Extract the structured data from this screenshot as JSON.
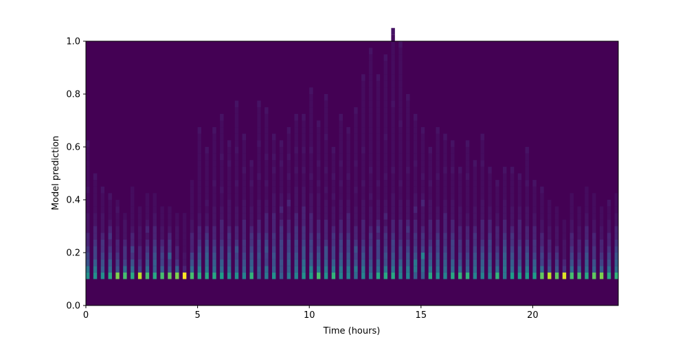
{
  "chart_data": {
    "type": "heatmap",
    "title": "",
    "xlabel": "Time (hours)",
    "ylabel": "Model prediction",
    "xlim": [
      0,
      23.83
    ],
    "ylim": [
      0,
      1.0
    ],
    "xticks": [
      0,
      5,
      10,
      15,
      20
    ],
    "yticks": [
      0.0,
      0.2,
      0.4,
      0.6,
      0.8,
      1.0
    ],
    "xtick_labels": [
      "0",
      "5",
      "10",
      "15",
      "20"
    ],
    "ytick_labels": [
      "0.0",
      "0.2",
      "0.4",
      "0.6",
      "0.8",
      "1.0"
    ],
    "colormap": "viridis",
    "background_color": "#440154",
    "x_step_hours": 0.3333,
    "x_bin_width_hours": 0.1667,
    "y_start": 0.1,
    "y_bin_width": 0.025,
    "vmax": 10,
    "z_columns": [
      [
        5,
        4,
        2.5,
        2,
        1.5,
        1,
        1,
        0.5,
        0.5,
        0.5,
        0.3,
        0.3,
        0.3,
        0.5,
        0.3,
        0.3,
        0.3,
        0.3,
        0.3,
        0.3,
        0.5
      ],
      [
        5,
        4,
        3,
        2,
        2,
        1.5,
        1,
        1,
        0.5,
        0.5,
        0.3,
        0.3,
        0.3,
        0.3,
        0.3,
        0.5
      ],
      [
        5,
        3,
        2.5,
        2,
        1.5,
        1.5,
        1,
        0.5,
        0.5,
        0.5,
        0.3,
        0.3,
        0.3,
        0.5
      ],
      [
        6,
        3.5,
        3,
        2,
        1.5,
        1,
        1.5,
        1,
        0.5,
        0.3,
        0.3,
        0.3,
        0.5
      ],
      [
        8,
        2.5,
        2,
        1.5,
        1,
        1,
        0.5,
        0.5,
        0.3,
        0.3,
        0.5,
        0.3
      ],
      [
        7,
        3.5,
        2,
        1.5,
        1.5,
        1,
        0.5,
        0.5,
        0.5,
        0.3
      ],
      [
        6,
        3.5,
        2.5,
        1.5,
        2,
        1,
        1,
        0.5,
        0.3,
        0.3,
        0.3,
        0.3,
        0.3,
        0.3
      ],
      [
        9,
        2,
        1.5,
        1,
        1,
        0.5,
        0.5,
        0.5,
        0.3,
        0.3,
        0.3
      ],
      [
        7,
        3.5,
        2.5,
        2,
        1.5,
        1,
        0.5,
        1,
        0.5,
        0.3,
        0.3,
        0.3,
        0.3
      ],
      [
        6,
        3,
        3,
        2.5,
        2,
        1.5,
        1,
        1,
        0.5,
        0.5,
        0.3,
        0.3,
        0.3
      ],
      [
        7,
        3,
        2,
        2,
        1.5,
        1,
        0.5,
        0.5,
        0.3,
        0.3,
        0.3
      ],
      [
        7.5,
        2.5,
        2,
        3,
        1.5,
        1.5,
        1,
        0.5,
        0.3,
        0.3,
        0.3
      ],
      [
        8,
        3,
        1.5,
        1,
        1,
        0.5,
        0.5,
        0.5,
        0.3,
        0.3
      ],
      [
        10,
        1,
        0.5,
        0.5,
        0.3,
        0.3,
        0.3,
        0.3,
        0.3,
        0.3
      ],
      [
        7,
        3.5,
        2.5,
        2,
        1,
        1,
        1,
        0.5,
        0.5,
        0.3,
        0.3,
        0.3,
        0.3,
        0.3,
        0.3
      ],
      [
        6,
        4,
        3,
        2.5,
        2,
        1.5,
        1,
        1,
        0.5,
        0.5,
        0.3,
        0.3,
        0.3,
        0.3,
        0.3,
        0.3,
        0.3,
        0.3,
        0.3,
        0.3,
        0.3,
        0.3,
        0.5
      ],
      [
        6,
        4,
        3.5,
        3,
        2.5,
        2,
        1.5,
        1,
        0.5,
        0.5,
        0.3,
        0.5,
        0.3,
        0.3,
        0.3,
        0.3,
        0.3,
        0.3,
        0.3,
        0.5
      ],
      [
        6,
        3.5,
        3,
        2.5,
        2,
        1.5,
        1,
        1,
        0.5,
        0.5,
        0.5,
        0.3,
        0.3,
        0.3,
        0.5,
        0.3,
        0.3,
        0.3,
        0.3,
        0.3,
        0.3,
        0.3,
        0.5
      ],
      [
        5.5,
        3.5,
        3,
        2,
        2,
        1.5,
        1,
        1,
        1,
        0.5,
        0.5,
        0.3,
        0.3,
        0.5,
        0.3,
        0.3,
        0.3,
        0.3,
        0.5,
        0.3,
        0.3,
        0.3,
        0.3,
        0.3,
        0.5
      ],
      [
        5,
        3.5,
        3,
        2.5,
        2,
        1.5,
        1.5,
        1,
        0.5,
        0.5,
        0.5,
        0.5,
        0.3,
        0.3,
        0.3,
        0.3,
        0.3,
        0.5,
        0.3,
        0.3,
        0.5
      ],
      [
        5,
        3,
        2.5,
        2,
        2.5,
        1.5,
        1,
        1,
        0.5,
        0.5,
        0.5,
        0.3,
        0.3,
        0.3,
        0.5,
        0.3,
        0.3,
        0.3,
        0.3,
        0.5,
        0.3,
        0.3,
        0.3,
        0.3,
        0.3,
        0.3,
        0.5
      ],
      [
        4.5,
        3,
        2.5,
        2,
        1.5,
        1.5,
        1,
        1,
        1,
        0.5,
        0.5,
        0.5,
        0.3,
        0.3,
        0.3,
        0.3,
        0.5,
        0.3,
        0.3,
        0.3,
        0.3,
        0.5
      ],
      [
        6.5,
        3.5,
        3,
        2.5,
        2,
        1.5,
        1.5,
        1,
        0.5,
        0.5,
        0.5,
        0.3,
        0.3,
        0.3,
        0.5,
        0.3,
        0.3,
        0.5
      ],
      [
        3,
        3,
        2.5,
        2.5,
        2,
        2,
        1.5,
        1,
        1,
        0.5,
        0.5,
        0.5,
        0.3,
        0.3,
        0.3,
        0.5,
        0.3,
        0.3,
        0.3,
        0.3,
        0.5,
        0.3,
        0.3,
        0.3,
        0.3,
        0.3,
        0.5
      ],
      [
        4,
        3.5,
        2,
        2,
        2.5,
        2,
        1.5,
        1,
        1,
        1,
        0.5,
        0.5,
        0.3,
        0.3,
        0.5,
        0.3,
        0.3,
        0.3,
        0.5,
        0.3,
        0.3,
        0.3,
        0.3,
        0.3,
        0.3,
        0.5
      ],
      [
        5,
        3,
        2.5,
        2.5,
        2,
        1.5,
        1.5,
        1,
        1,
        1,
        0.5,
        0.5,
        0.5,
        0.3,
        0.3,
        0.3,
        0.5,
        0.3,
        0.5,
        0.3,
        0.3,
        0.5
      ],
      [
        3,
        2.5,
        2.5,
        2,
        2,
        2,
        1.5,
        1.5,
        1,
        0.5,
        1,
        0.5,
        0.5,
        0.3,
        0.3,
        0.3,
        0.3,
        0.5,
        0.3,
        0.3,
        0.5
      ],
      [
        4,
        3,
        3,
        2.5,
        2,
        2,
        1.5,
        1,
        1,
        0.5,
        0.5,
        1,
        0.5,
        0.3,
        0.3,
        0.5,
        0.3,
        0.3,
        0.5,
        0.3,
        0.3,
        0.3,
        0.5
      ],
      [
        4.5,
        3.5,
        3,
        2.5,
        2,
        2,
        1.5,
        1.5,
        1,
        1,
        0.5,
        0.5,
        0.5,
        0.5,
        0.3,
        0.3,
        0.5,
        0.3,
        0.3,
        0.5,
        0.3,
        0.3,
        0.3,
        0.3,
        0.5
      ],
      [
        5,
        4,
        3.5,
        2.5,
        2.5,
        2,
        1.5,
        1.5,
        1,
        1,
        1,
        0.5,
        0.5,
        0.5,
        0.3,
        0.3,
        0.5,
        0.3,
        0.3,
        0.5,
        0.3,
        0.3,
        0.3,
        0.3,
        0.5
      ],
      [
        5.5,
        4.5,
        3,
        2.5,
        2,
        2,
        1.5,
        1,
        1,
        1,
        0.5,
        0.5,
        0.5,
        0.3,
        0.3,
        0.5,
        0.3,
        0.3,
        0.3,
        0.5,
        0.3,
        0.3,
        0.3,
        0.3,
        0.3,
        0.3,
        0.3,
        0.3,
        0.5
      ],
      [
        7,
        4,
        3,
        2.5,
        2,
        1.5,
        1.5,
        1,
        1,
        0.5,
        0.5,
        0.5,
        0.5,
        0.3,
        0.5,
        0.3,
        0.3,
        0.5,
        0.3,
        0.3,
        0.3,
        0.3,
        0.3,
        0.5
      ],
      [
        5,
        4,
        3,
        2.5,
        2.5,
        1.5,
        1,
        1,
        1,
        0.5,
        0.5,
        0.5,
        0.3,
        0.5,
        0.3,
        0.3,
        0.5,
        0.3,
        0.3,
        0.3,
        0.3,
        0.5,
        0.3,
        0.3,
        0.3,
        0.3,
        0.3,
        0.5
      ],
      [
        6.5,
        4,
        3,
        2,
        2,
        1.5,
        1.5,
        1,
        0.5,
        0.5,
        0.5,
        0.3,
        0.5,
        0.3,
        0.3,
        0.5,
        0.3,
        0.3,
        0.3,
        0.5
      ],
      [
        4.5,
        4,
        3,
        2.5,
        2,
        2,
        1.5,
        1,
        1,
        0.5,
        0.5,
        0.5,
        0.3,
        0.3,
        0.5,
        0.3,
        0.3,
        0.5,
        0.3,
        0.3,
        0.3,
        0.3,
        0.3,
        0.3,
        0.5
      ],
      [
        4.5,
        4,
        3,
        2.5,
        2,
        2,
        1.5,
        1,
        1,
        1,
        0.5,
        0.5,
        0.3,
        0.3,
        0.3,
        0.5,
        0.3,
        0.3,
        0.3,
        0.3,
        0.3,
        0.3,
        0.5
      ],
      [
        3.5,
        4,
        2.5,
        2,
        2.5,
        1.5,
        1,
        1,
        0.5,
        0.5,
        0.5,
        0.3,
        0.3,
        0.5,
        0.3,
        0.3,
        0.3,
        0.5,
        0.3,
        0.3,
        0.3,
        0.3,
        0.3,
        0.3,
        0.3,
        0.5
      ],
      [
        4.5,
        4,
        3,
        2.5,
        2,
        1.5,
        1,
        1,
        1,
        0.5,
        0.5,
        0.5,
        0.3,
        0.3,
        0.5,
        0.3,
        0.3,
        0.3,
        0.3,
        0.5,
        0.3,
        0.3,
        0.3,
        0.3,
        0.3,
        0.3,
        0.3,
        0.3,
        0.3,
        0.3,
        0.5
      ],
      [
        4,
        3,
        2.5,
        2,
        2,
        1.5,
        1.5,
        1,
        0.5,
        0.5,
        0.5,
        0.3,
        0.5,
        0.3,
        0.3,
        0.3,
        0.5,
        0.3,
        0.3,
        0.3,
        0.3,
        0.3,
        0.3,
        0.3,
        0.3,
        0.3,
        0.3,
        0.3,
        0.3,
        0.3,
        0.3,
        0.3,
        0.3,
        0.3,
        0.5
      ],
      [
        6,
        3.5,
        3,
        2,
        2,
        2,
        1,
        1.5,
        1,
        0.5,
        0.5,
        0.5,
        0.3,
        0.3,
        0.5,
        0.3,
        0.3,
        0.3,
        0.3,
        0.3,
        0.3,
        0.3,
        0.3,
        0.3,
        0.3,
        0.3,
        0.3,
        0.3,
        0.3,
        0.3,
        0.5
      ],
      [
        6,
        4,
        2.5,
        2.5,
        2,
        1.5,
        1.5,
        1,
        0.5,
        1,
        0.5,
        0.5,
        0.3,
        0.3,
        0.3,
        0.5,
        0.3,
        0.3,
        0.3,
        0.3,
        0.3,
        0.5,
        0.3,
        0.3,
        0.3,
        0.3,
        0.3,
        0.3,
        0.3,
        0.3,
        0.3,
        0.3,
        0.3,
        0.5
      ],
      [
        6,
        4,
        3,
        2.5,
        2,
        2,
        1.5,
        1,
        1,
        0.5,
        0.5,
        0.5,
        0.5,
        0.3,
        0.3,
        0.3,
        0.5,
        0.3,
        0.3,
        0.3,
        0.3,
        0.3,
        0.3,
        0.3,
        0.3,
        0.3,
        0.5,
        0.3,
        0.3,
        0.3,
        0.3,
        0.3,
        0.3,
        0.3,
        0.3,
        0.3,
        0.3,
        0.5
      ],
      [
        4.5,
        4,
        3,
        2,
        2,
        1.5,
        1,
        1,
        1,
        0.5,
        0.5,
        0.5,
        0.3,
        0.3,
        0.5,
        0.3,
        0.3,
        0.3,
        0.3,
        0.3,
        0.3,
        0.3,
        0.3,
        0.5,
        0.3,
        0.3,
        0.3,
        0.3,
        0.3,
        0.3,
        0.3,
        0.3,
        0.3,
        0.3,
        0.3,
        0.5
      ],
      [
        4.5,
        4,
        3,
        2.5,
        2,
        1.5,
        1,
        1.5,
        1,
        0.5,
        0.5,
        0.5,
        0.3,
        0.3,
        0.3,
        0.3,
        0.5,
        0.3,
        0.3,
        0.3,
        0.3,
        0.3,
        0.3,
        0.3,
        0.3,
        0.3,
        0.3,
        0.5
      ],
      [
        3,
        4,
        4,
        2.5,
        2,
        1.5,
        1.5,
        1,
        1,
        0.5,
        1,
        0.5,
        0.5,
        0.3,
        0.3,
        0.3,
        0.3,
        0.5,
        0.3,
        0.3,
        0.3,
        0.3,
        0.3,
        0.3,
        0.5
      ],
      [
        3,
        3.5,
        3,
        4.5,
        2,
        1.5,
        1.5,
        1,
        0.5,
        0.5,
        0.5,
        1,
        0.5,
        0.3,
        0.3,
        0.5,
        0.3,
        0.3,
        0.3,
        0.3,
        0.3,
        0.3,
        0.5
      ],
      [
        6,
        4,
        3,
        2.5,
        2,
        1.5,
        1,
        1,
        1,
        0.5,
        0.5,
        0.5,
        0.3,
        0.3,
        0.5,
        0.3,
        0.3,
        0.3,
        0.3,
        0.5
      ],
      [
        5,
        3.5,
        3,
        2.5,
        2,
        2,
        1.5,
        1,
        1,
        0.5,
        0.5,
        0.3,
        0.3,
        0.3,
        0.3,
        0.5,
        0.3,
        0.3,
        0.3,
        0.3,
        0.3,
        0.3,
        0.5
      ],
      [
        4.5,
        3.5,
        3,
        2.5,
        2,
        1.5,
        1.5,
        1,
        1,
        1,
        0.5,
        0.5,
        0.3,
        0.3,
        0.3,
        0.3,
        0.5,
        0.3,
        0.3,
        0.3,
        0.3,
        0.5
      ],
      [
        6,
        3.5,
        3,
        2,
        2,
        2,
        1.5,
        1,
        1,
        0.5,
        0.5,
        0.5,
        0.3,
        0.3,
        0.3,
        0.3,
        0.5,
        0.3,
        0.3,
        0.3,
        0.5
      ],
      [
        6.5,
        3.5,
        2.5,
        2,
        1.5,
        1.5,
        1,
        1,
        0.5,
        0.5,
        0.5,
        0.3,
        0.3,
        0.3,
        0.3,
        0.3,
        0.5
      ],
      [
        6.5,
        3,
        2.5,
        2,
        1.5,
        1.5,
        1,
        1,
        0.5,
        0.5,
        0.3,
        0.3,
        0.3,
        0.3,
        0.3,
        0.5,
        0.3,
        0.3,
        0.3,
        0.3,
        0.5
      ],
      [
        4.5,
        3.5,
        3,
        2.5,
        2,
        1.5,
        1.5,
        1,
        0.5,
        0.5,
        0.5,
        0.3,
        0.3,
        0.3,
        0.3,
        0.3,
        0.3,
        0.5
      ],
      [
        4.5,
        3.5,
        3,
        2.5,
        2,
        1.5,
        1,
        1,
        1,
        0.5,
        0.5,
        0.5,
        0.3,
        0.3,
        0.3,
        0.3,
        0.3,
        0.5,
        0.3,
        0.3,
        0.3,
        0.5
      ],
      [
        4.5,
        3.5,
        3,
        2.5,
        2,
        2,
        1.5,
        1,
        1,
        0.5,
        0.5,
        0.3,
        0.3,
        0.3,
        0.3,
        0.3,
        0.5
      ],
      [
        6.5,
        3.5,
        2.5,
        2,
        1.5,
        1,
        1,
        1,
        0.5,
        0.5,
        0.3,
        0.3,
        0.3,
        0.3,
        0.5
      ],
      [
        4,
        4,
        3.5,
        3,
        2.5,
        2,
        1.5,
        1,
        1,
        0.5,
        0.5,
        0.5,
        0.3,
        0.3,
        0.3,
        0.3,
        0.5
      ],
      [
        5.5,
        3.5,
        3,
        2.5,
        2,
        1.5,
        1.5,
        1,
        0.5,
        0.5,
        0.5,
        0.3,
        0.3,
        0.3,
        0.3,
        0.3,
        0.5
      ],
      [
        5.5,
        3.5,
        2.5,
        2,
        2,
        1.5,
        1,
        1,
        1,
        0.5,
        0.5,
        0.3,
        0.3,
        0.3,
        0.3,
        0.5
      ],
      [
        5.5,
        4,
        3,
        2.5,
        2,
        1.5,
        1,
        1,
        0.5,
        0.5,
        0.5,
        0.3,
        0.3,
        0.3,
        0.5,
        0.3,
        0.3,
        0.3,
        0.3,
        0.5
      ],
      [
        5.5,
        3.5,
        3,
        2,
        1.5,
        1.5,
        1,
        1,
        0.5,
        0.5,
        0.3,
        0.3,
        0.3,
        0.3,
        0.5
      ],
      [
        7.5,
        3.5,
        2,
        2,
        1.5,
        1,
        1,
        0.5,
        0.5,
        0.3,
        0.3,
        0.3,
        0.3,
        0.5
      ],
      [
        9,
        2.5,
        2,
        1.5,
        1,
        1,
        0.5,
        0.5,
        0.3,
        0.3,
        0.3,
        0.3
      ],
      [
        7.5,
        2.5,
        2,
        1.5,
        1,
        0.5,
        0.5,
        0.5,
        0.3,
        0.3,
        0.3
      ],
      [
        9.5,
        1.5,
        1,
        0.5,
        0.5,
        0.5,
        0.3,
        0.3,
        0.3
      ],
      [
        7,
        3.5,
        2.5,
        2,
        1.5,
        1,
        1,
        0.5,
        0.5,
        0.3,
        0.3,
        0.3,
        0.3
      ],
      [
        7,
        3,
        2,
        1.5,
        1,
        1,
        0.5,
        0.5,
        0.3,
        0.3,
        0.3
      ],
      [
        6,
        3.5,
        3,
        2.5,
        2,
        1.5,
        1,
        1,
        0.5,
        0.5,
        0.3,
        0.3,
        0.3,
        0.3
      ],
      [
        7.5,
        3,
        2.5,
        1.5,
        1.5,
        1,
        1,
        0.5,
        0.5,
        0.3,
        0.3,
        0.3,
        0.3
      ],
      [
        8,
        3,
        2,
        1.5,
        1,
        1,
        0.5,
        0.5,
        0.3,
        0.3,
        0.3
      ],
      [
        6,
        3.5,
        2.5,
        2,
        1.5,
        1,
        1,
        0.5,
        0.5,
        0.3,
        0.3,
        0.5
      ],
      [
        6.5,
        3.5,
        3,
        2.5,
        2,
        1.5,
        1,
        1,
        0.5,
        0.5,
        0.3,
        0.3,
        0.3
      ]
    ]
  }
}
